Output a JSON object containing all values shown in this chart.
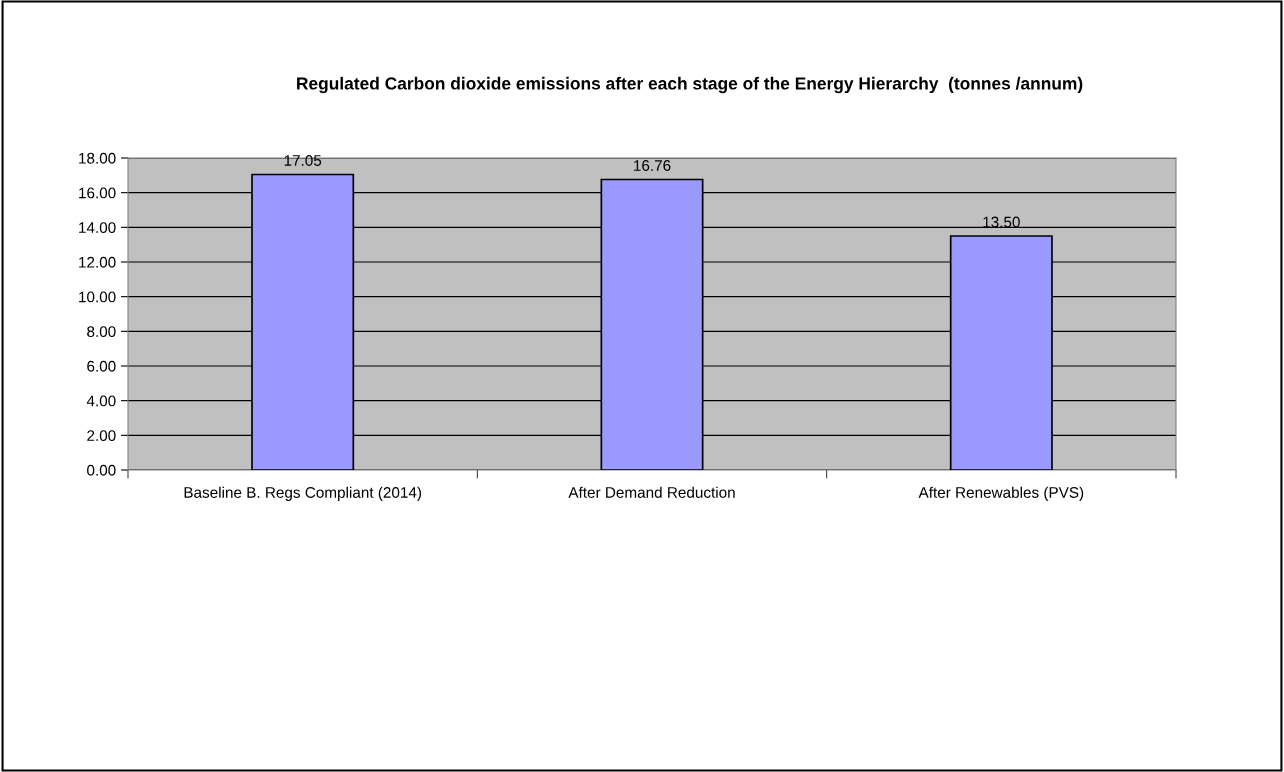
{
  "chart_data": {
    "type": "bar",
    "title": "Regulated Carbon dioxide emissions after each stage of the Energy Hierarchy  (tonnes /annum)",
    "categories": [
      "Baseline B. Regs Compliant (2014)",
      "After Demand Reduction",
      "After Renewables (PVS)"
    ],
    "values": [
      17.05,
      16.76,
      13.5
    ],
    "value_labels": [
      "17.05",
      "16.76",
      "13.50"
    ],
    "color": "#9999ff",
    "ylim": [
      0,
      18
    ],
    "yticks": [
      {
        "value": 0,
        "label": "0.00"
      },
      {
        "value": 2,
        "label": "2.00"
      },
      {
        "value": 4,
        "label": "4.00"
      },
      {
        "value": 6,
        "label": "6.00"
      },
      {
        "value": 8,
        "label": "8.00"
      },
      {
        "value": 10,
        "label": "10.00"
      },
      {
        "value": 12,
        "label": "12.00"
      },
      {
        "value": 14,
        "label": "14.00"
      },
      {
        "value": 16,
        "label": "16.00"
      },
      {
        "value": 18,
        "label": "18.00"
      }
    ],
    "grid": "y"
  }
}
